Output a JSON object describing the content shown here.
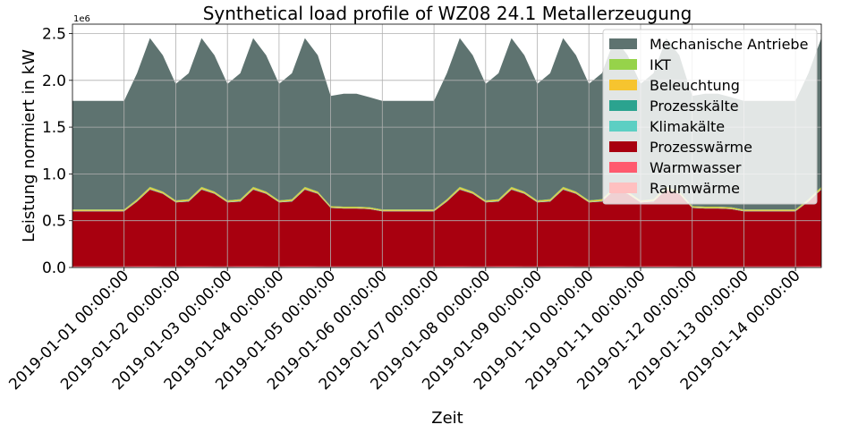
{
  "chart_data": {
    "type": "area",
    "stacked": true,
    "title": "Synthetical load profile of WZ08 24.1 Metallerzeugung",
    "xlabel": "Zeit",
    "ylabel": "Leistung normiert in kW",
    "y_offset_label": "1e6",
    "ylim": [
      0,
      2600000
    ],
    "y_ticks": [
      0,
      500000,
      1000000,
      1500000,
      2000000,
      2500000
    ],
    "y_tick_labels": [
      "0.0",
      "0.5",
      "1.0",
      "1.5",
      "2.0",
      "2.5"
    ],
    "xlim": [
      "2018-12-31 00:00:00",
      "2019-01-14 12:00:00"
    ],
    "x_ticks": [
      "2019-01-01 00:00:00",
      "2019-01-02 00:00:00",
      "2019-01-03 00:00:00",
      "2019-01-04 00:00:00",
      "2019-01-05 00:00:00",
      "2019-01-06 00:00:00",
      "2019-01-07 00:00:00",
      "2019-01-08 00:00:00",
      "2019-01-09 00:00:00",
      "2019-01-10 00:00:00",
      "2019-01-11 00:00:00",
      "2019-01-12 00:00:00",
      "2019-01-13 00:00:00",
      "2019-01-14 00:00:00"
    ],
    "x_tick_labels": [
      "2019-01-01 00:00:00",
      "2019-01-02 00:00:00",
      "2019-01-03 00:00:00",
      "2019-01-04 00:00:00",
      "2019-01-05 00:00:00",
      "2019-01-06 00:00:00",
      "2019-01-07 00:00:00",
      "2019-01-08 00:00:00",
      "2019-01-09 00:00:00",
      "2019-01-10 00:00:00",
      "2019-01-11 00:00:00",
      "2019-01-12 00:00:00",
      "2019-01-13 00:00:00",
      "2019-01-14 00:00:00"
    ],
    "grid": true,
    "legend_position": "top-right",
    "x": [
      "2018-12-31 00:00:00",
      "2019-01-01 00:00:00",
      "2019-01-01 06:00:00",
      "2019-01-01 12:00:00",
      "2019-01-01 18:00:00",
      "2019-01-02 00:00:00",
      "2019-01-02 06:00:00",
      "2019-01-02 12:00:00",
      "2019-01-02 18:00:00",
      "2019-01-03 00:00:00",
      "2019-01-03 06:00:00",
      "2019-01-03 12:00:00",
      "2019-01-03 18:00:00",
      "2019-01-04 00:00:00",
      "2019-01-04 06:00:00",
      "2019-01-04 12:00:00",
      "2019-01-04 18:00:00",
      "2019-01-05 00:00:00",
      "2019-01-05 06:00:00",
      "2019-01-05 12:00:00",
      "2019-01-05 18:00:00",
      "2019-01-06 00:00:00",
      "2019-01-06 06:00:00",
      "2019-01-06 12:00:00",
      "2019-01-06 18:00:00",
      "2019-01-07 00:00:00",
      "2019-01-07 06:00:00",
      "2019-01-07 12:00:00",
      "2019-01-07 18:00:00",
      "2019-01-08 00:00:00",
      "2019-01-08 06:00:00",
      "2019-01-08 12:00:00",
      "2019-01-08 18:00:00",
      "2019-01-09 00:00:00",
      "2019-01-09 06:00:00",
      "2019-01-09 12:00:00",
      "2019-01-09 18:00:00",
      "2019-01-10 00:00:00",
      "2019-01-10 06:00:00",
      "2019-01-10 12:00:00",
      "2019-01-10 18:00:00",
      "2019-01-11 00:00:00",
      "2019-01-11 06:00:00",
      "2019-01-11 12:00:00",
      "2019-01-11 18:00:00",
      "2019-01-12 00:00:00",
      "2019-01-12 06:00:00",
      "2019-01-12 12:00:00",
      "2019-01-12 18:00:00",
      "2019-01-13 00:00:00",
      "2019-01-13 06:00:00",
      "2019-01-13 12:00:00",
      "2019-01-13 18:00:00",
      "2019-01-14 00:00:00",
      "2019-01-14 06:00:00",
      "2019-01-14 12:00:00"
    ],
    "series": [
      {
        "name": "Raumwärme",
        "color": "#ffc0c0",
        "values": [
          8000,
          8000,
          9000,
          9000,
          8000,
          8000,
          9000,
          9000,
          8000,
          8000,
          9000,
          9000,
          8000,
          8000,
          9000,
          9000,
          8000,
          8000,
          8000,
          8000,
          8000,
          8000,
          8000,
          8000,
          8000,
          8000,
          9000,
          9000,
          8000,
          8000,
          9000,
          9000,
          8000,
          8000,
          9000,
          9000,
          8000,
          8000,
          9000,
          9000,
          8000,
          8000,
          9000,
          9000,
          8000,
          8000,
          8000,
          8000,
          8000,
          8000,
          8000,
          8000,
          8000,
          8000,
          9000,
          9000
        ]
      },
      {
        "name": "Warmwasser",
        "color": "#ff5a6e",
        "values": [
          4000,
          4000,
          5000,
          5000,
          4000,
          4000,
          5000,
          5000,
          4000,
          4000,
          5000,
          5000,
          4000,
          4000,
          5000,
          5000,
          4000,
          4000,
          4000,
          4000,
          4000,
          4000,
          4000,
          4000,
          4000,
          4000,
          5000,
          5000,
          4000,
          4000,
          5000,
          5000,
          4000,
          4000,
          5000,
          5000,
          4000,
          4000,
          5000,
          5000,
          4000,
          4000,
          5000,
          5000,
          4000,
          4000,
          4000,
          4000,
          4000,
          4000,
          4000,
          4000,
          4000,
          4000,
          5000,
          5000
        ]
      },
      {
        "name": "Prozesswärme",
        "color": "#a8000f",
        "values": [
          588000,
          588000,
          690000,
          818000,
          776000,
          684000,
          690000,
          818000,
          776000,
          684000,
          690000,
          818000,
          776000,
          684000,
          690000,
          818000,
          776000,
          624000,
          618000,
          618000,
          612000,
          588000,
          588000,
          588000,
          588000,
          588000,
          690000,
          818000,
          776000,
          684000,
          690000,
          818000,
          776000,
          684000,
          690000,
          818000,
          776000,
          684000,
          690000,
          818000,
          776000,
          684000,
          690000,
          818000,
          776000,
          624000,
          618000,
          618000,
          612000,
          588000,
          588000,
          588000,
          588000,
          588000,
          690000,
          818000
        ]
      },
      {
        "name": "Klimakälte",
        "color": "#5ccfc3",
        "values": [
          3000,
          3000,
          4000,
          4000,
          3000,
          3000,
          4000,
          4000,
          3000,
          3000,
          4000,
          4000,
          3000,
          3000,
          4000,
          4000,
          3000,
          3000,
          3000,
          3000,
          3000,
          3000,
          3000,
          3000,
          3000,
          3000,
          4000,
          4000,
          3000,
          3000,
          4000,
          4000,
          3000,
          3000,
          4000,
          4000,
          3000,
          3000,
          4000,
          4000,
          3000,
          3000,
          4000,
          4000,
          3000,
          3000,
          3000,
          3000,
          3000,
          3000,
          3000,
          3000,
          3000,
          3000,
          4000,
          4000
        ]
      },
      {
        "name": "Prozesskälte",
        "color": "#2ba38f",
        "values": [
          2000,
          2000,
          3000,
          3000,
          2000,
          2000,
          3000,
          3000,
          2000,
          2000,
          3000,
          3000,
          2000,
          2000,
          3000,
          3000,
          2000,
          2000,
          2000,
          2000,
          2000,
          2000,
          2000,
          2000,
          2000,
          2000,
          3000,
          3000,
          2000,
          2000,
          3000,
          3000,
          2000,
          2000,
          3000,
          3000,
          2000,
          2000,
          3000,
          3000,
          2000,
          2000,
          3000,
          3000,
          2000,
          2000,
          2000,
          2000,
          2000,
          2000,
          2000,
          2000,
          2000,
          2000,
          3000,
          3000
        ]
      },
      {
        "name": "Beleuchtung",
        "color": "#f6c42f",
        "values": [
          10000,
          10000,
          12000,
          14000,
          12000,
          10000,
          12000,
          14000,
          12000,
          10000,
          12000,
          14000,
          12000,
          10000,
          12000,
          14000,
          12000,
          10000,
          10000,
          10000,
          10000,
          10000,
          10000,
          10000,
          10000,
          10000,
          12000,
          14000,
          12000,
          10000,
          12000,
          14000,
          12000,
          10000,
          12000,
          14000,
          12000,
          10000,
          12000,
          14000,
          12000,
          10000,
          12000,
          14000,
          12000,
          10000,
          10000,
          10000,
          10000,
          10000,
          10000,
          10000,
          10000,
          10000,
          12000,
          14000
        ]
      },
      {
        "name": "IKT",
        "color": "#96d34a",
        "values": [
          5000,
          5000,
          7000,
          8000,
          7000,
          6000,
          7000,
          8000,
          7000,
          6000,
          7000,
          8000,
          7000,
          6000,
          7000,
          8000,
          7000,
          5000,
          5000,
          5000,
          5000,
          5000,
          5000,
          5000,
          5000,
          5000,
          7000,
          8000,
          7000,
          6000,
          7000,
          8000,
          7000,
          6000,
          7000,
          8000,
          7000,
          6000,
          7000,
          8000,
          7000,
          6000,
          7000,
          8000,
          7000,
          5000,
          5000,
          5000,
          5000,
          5000,
          5000,
          5000,
          5000,
          5000,
          7000,
          8000
        ]
      },
      {
        "name": "Mechanische Antriebe",
        "color": "#5e7370",
        "values": [
          1160000,
          1160000,
          1345000,
          1590000,
          1455000,
          1245000,
          1345000,
          1590000,
          1455000,
          1245000,
          1345000,
          1590000,
          1455000,
          1245000,
          1345000,
          1590000,
          1455000,
          1176000,
          1206000,
          1206000,
          1176000,
          1160000,
          1160000,
          1160000,
          1160000,
          1160000,
          1345000,
          1590000,
          1455000,
          1245000,
          1345000,
          1590000,
          1455000,
          1245000,
          1345000,
          1590000,
          1455000,
          1245000,
          1345000,
          1590000,
          1455000,
          1245000,
          1345000,
          1590000,
          1455000,
          1176000,
          1206000,
          1206000,
          1176000,
          1160000,
          1160000,
          1160000,
          1160000,
          1160000,
          1345000,
          1590000
        ]
      }
    ]
  }
}
